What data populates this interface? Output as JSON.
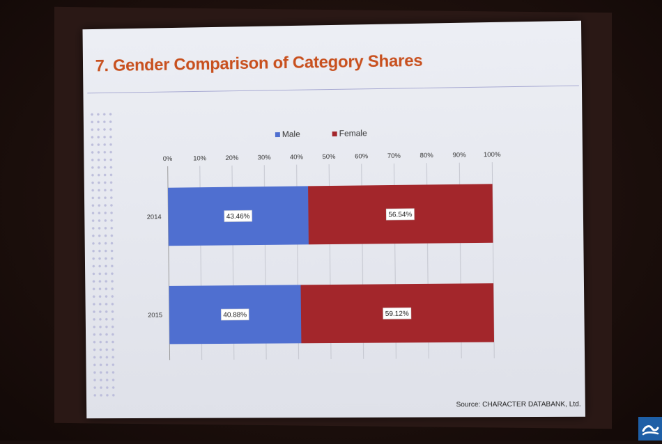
{
  "slide": {
    "title": "7. Gender Comparison of Category Shares",
    "source": "Source: CHARACTER DATABANK, Ltd."
  },
  "chart_data": {
    "type": "bar",
    "orientation": "horizontal",
    "stacked": true,
    "categories": [
      "2014",
      "2015"
    ],
    "series": [
      {
        "name": "Male",
        "values": [
          43.46,
          40.88
        ],
        "labels": [
          "43.46%",
          "40.88%"
        ],
        "color": "#4f6fd0"
      },
      {
        "name": "Female",
        "values": [
          56.54,
          59.12
        ],
        "labels": [
          "56.54%",
          "59.12%"
        ],
        "color": "#a3262b"
      }
    ],
    "xticks": [
      "0%",
      "10%",
      "20%",
      "30%",
      "40%",
      "50%",
      "60%",
      "70%",
      "80%",
      "90%",
      "100%"
    ],
    "xlim": [
      0,
      100
    ],
    "grid": true,
    "legend_placement": "top"
  },
  "colors": {
    "title": "#c8501e",
    "male": "#4f6fd0",
    "female": "#a3262b"
  }
}
